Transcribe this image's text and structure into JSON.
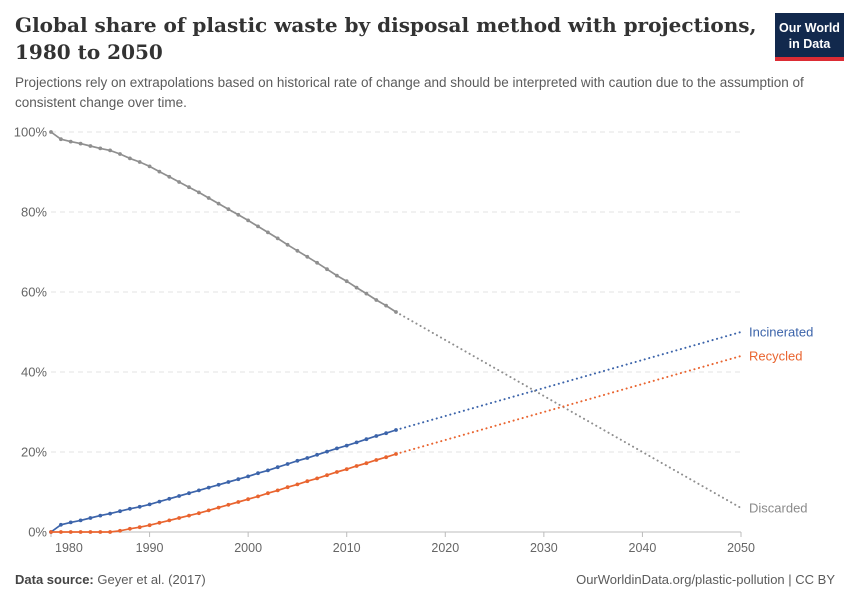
{
  "header": {
    "logo": {
      "line1": "Our World",
      "line2": "in Data"
    }
  },
  "footer": {
    "source_label": "Data source:",
    "source_value": "Geyer et al. (2017)",
    "license": "OurWorldinData.org/plastic-pollution | CC BY"
  },
  "chart_data": {
    "type": "line",
    "title": "Global share of plastic waste by disposal method with projections, 1980 to 2050",
    "subtitle": "Projections rely on extrapolations based on historical rate of change and should be interpreted with caution due to the assumption of consistent change over time.",
    "xlim": [
      1980,
      2050
    ],
    "ylim": [
      0,
      100
    ],
    "grid": "horizontal-dashed",
    "legend_position": "end-of-line-labels",
    "x_ticks": [
      1980,
      1990,
      2000,
      2010,
      2020,
      2030,
      2040,
      2050
    ],
    "y_ticks": [
      {
        "value": 0,
        "label": "0%"
      },
      {
        "value": 20,
        "label": "20%"
      },
      {
        "value": 40,
        "label": "40%"
      },
      {
        "value": 60,
        "label": "60%"
      },
      {
        "value": 80,
        "label": "80%"
      },
      {
        "value": 100,
        "label": "100%"
      }
    ],
    "projection_note": "solid = historical (1980-2015), dotted = projection (2015-2050)",
    "series": [
      {
        "name": "Discarded",
        "color": "#8f8f8f",
        "label_color": "#8a8a8a",
        "start_year": 1980,
        "historical": [
          100,
          98.2,
          97.6,
          97.1,
          96.5,
          95.9,
          95.4,
          94.5,
          93.4,
          92.5,
          91.4,
          90.1,
          88.8,
          87.5,
          86.2,
          84.9,
          83.5,
          82.1,
          80.7,
          79.3,
          77.9,
          76.4,
          74.9,
          73.4,
          71.8,
          70.3,
          68.8,
          67.3,
          65.7,
          64.1,
          62.7,
          61.1,
          59.6,
          58.0,
          56.6,
          55.0
        ],
        "projection": {
          "start_year": 2015,
          "start_value": 55.0,
          "end_year": 2050,
          "end_value": 6.0
        }
      },
      {
        "name": "Incinerated",
        "color": "#3c64aa",
        "label_color": "#3c64aa",
        "start_year": 1980,
        "historical": [
          0,
          1.8,
          2.4,
          2.9,
          3.5,
          4.1,
          4.6,
          5.2,
          5.8,
          6.3,
          6.9,
          7.6,
          8.3,
          9.0,
          9.7,
          10.4,
          11.1,
          11.8,
          12.5,
          13.2,
          13.9,
          14.7,
          15.4,
          16.2,
          17.0,
          17.8,
          18.5,
          19.3,
          20.1,
          20.9,
          21.6,
          22.4,
          23.2,
          24.0,
          24.7,
          25.5
        ],
        "projection": {
          "start_year": 2015,
          "start_value": 25.5,
          "end_year": 2050,
          "end_value": 50.0
        }
      },
      {
        "name": "Recycled",
        "color": "#e9642f",
        "label_color": "#e9642f",
        "start_year": 1980,
        "historical": [
          0,
          0,
          0,
          0,
          0,
          0,
          0,
          0.3,
          0.8,
          1.2,
          1.7,
          2.3,
          2.9,
          3.5,
          4.1,
          4.7,
          5.4,
          6.1,
          6.8,
          7.5,
          8.2,
          8.9,
          9.7,
          10.4,
          11.2,
          11.9,
          12.7,
          13.4,
          14.2,
          15.0,
          15.7,
          16.5,
          17.2,
          18.0,
          18.7,
          19.5
        ],
        "projection": {
          "start_year": 2015,
          "start_value": 19.5,
          "end_year": 2050,
          "end_value": 44.0
        }
      }
    ]
  }
}
